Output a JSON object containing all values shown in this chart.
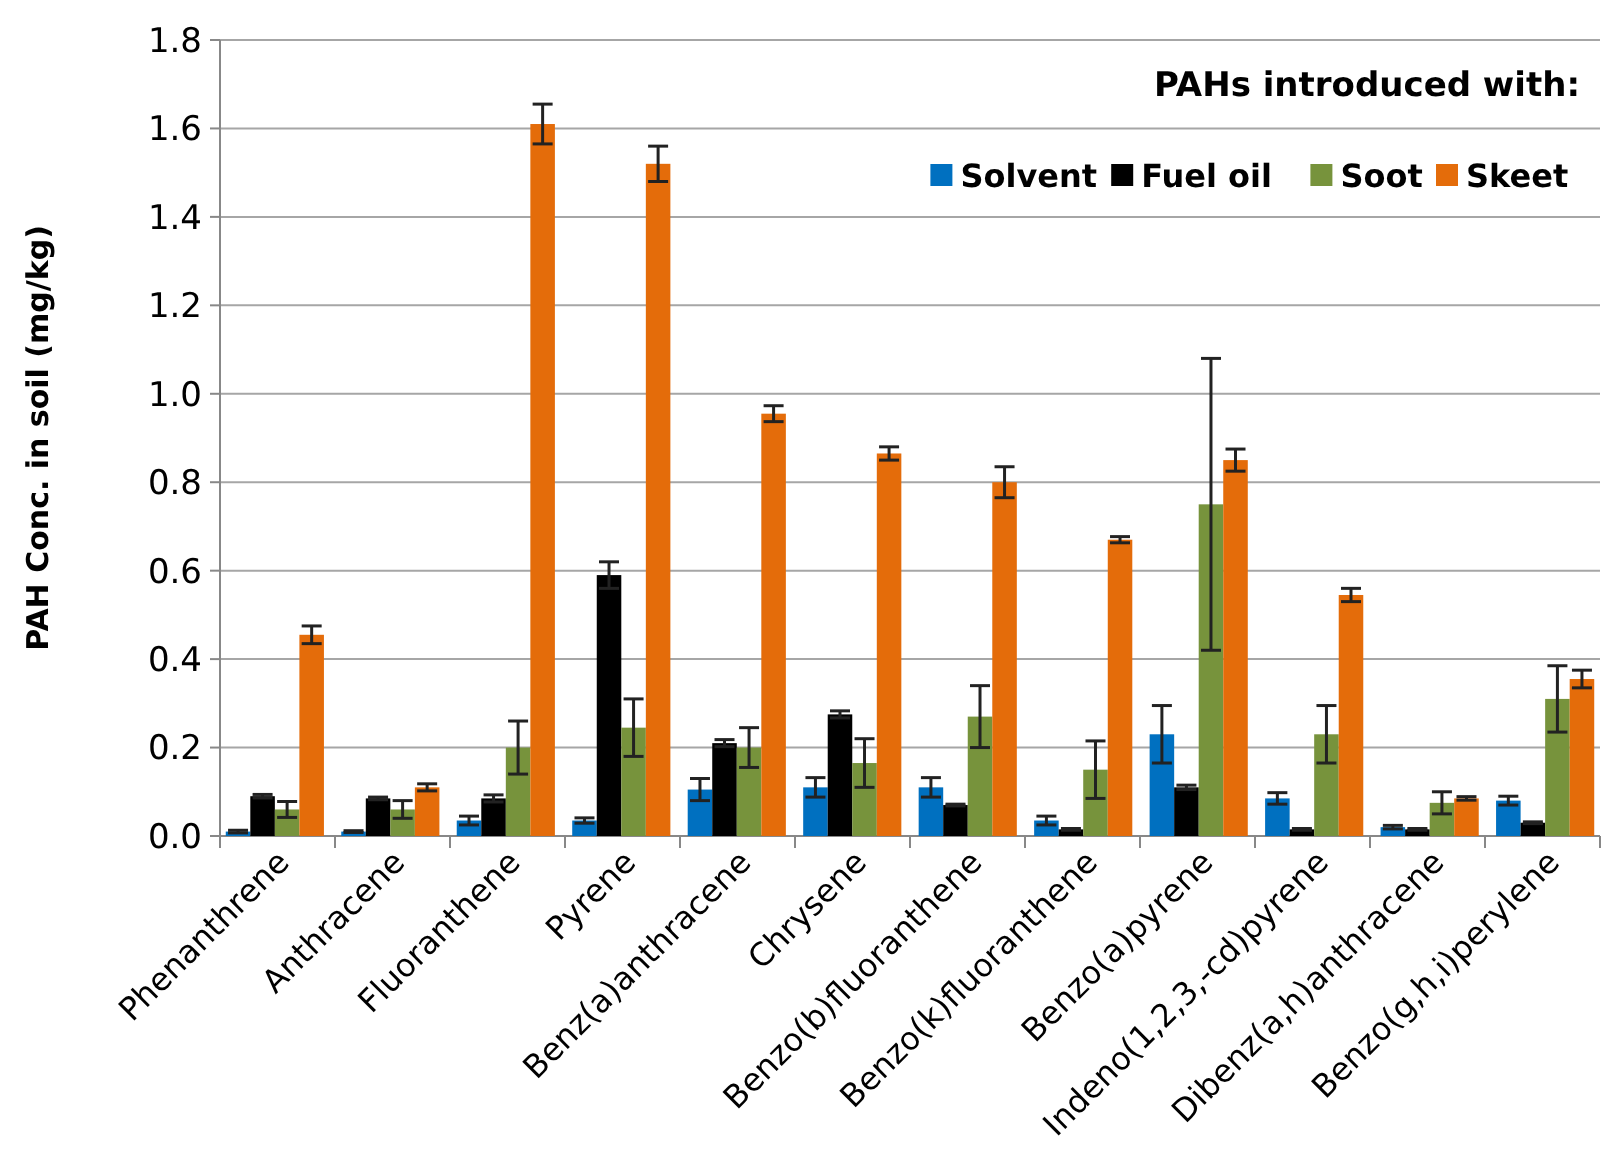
{
  "chart_data": {
    "type": "bar",
    "ylabel": "PAH  Conc. in soil (mg/kg)",
    "legend_title": "PAHs introduced with:",
    "legend": "top right",
    "grid": "y",
    "categories": [
      "Phenanthrene",
      "Anthracene",
      "Fluoranthene",
      "Pyrene",
      "Benz(a)anthracene",
      "Chrysene",
      "Benzo(b)fluoranthene",
      "Benzo(k)fluoranthene",
      "Benzo(a)pyrene",
      "Indeno(1,2,3,-cd)pyrene",
      "Dibenz(a,h)anthracene",
      "Benzo(g,h,i)perylene"
    ],
    "ylim": [
      0,
      1.8
    ],
    "yticks": [
      {
        "value": 0,
        "label": "0.0"
      },
      {
        "value": 0.2,
        "label": "0.2"
      },
      {
        "value": 0.4,
        "label": "0.4"
      },
      {
        "value": 0.6,
        "label": "0.6"
      },
      {
        "value": 0.8,
        "label": "0.8"
      },
      {
        "value": 1,
        "label": "1.0"
      },
      {
        "value": 1.2,
        "label": "1.2"
      },
      {
        "value": 1.4,
        "label": "1.4"
      },
      {
        "value": 1.6,
        "label": "1.6"
      },
      {
        "value": 1.8,
        "label": "1.8"
      }
    ],
    "series": [
      {
        "name": "Solvent",
        "color": "#0070c0",
        "values": [
          0.01,
          0.01,
          0.035,
          0.035,
          0.105,
          0.11,
          0.11,
          0.035,
          0.23,
          0.085,
          0.02,
          0.08
        ],
        "errors": [
          0.003,
          0.002,
          0.01,
          0.006,
          0.025,
          0.022,
          0.022,
          0.01,
          0.065,
          0.013,
          0.004,
          0.01
        ]
      },
      {
        "name": "Fuel oil",
        "color": "#000000",
        "values": [
          0.09,
          0.085,
          0.085,
          0.59,
          0.21,
          0.275,
          0.07,
          0.015,
          0.11,
          0.015,
          0.015,
          0.03
        ],
        "errors": [
          0.004,
          0.003,
          0.008,
          0.03,
          0.008,
          0.008,
          0.002,
          0.002,
          0.005,
          0.002,
          0.002,
          0.002
        ]
      },
      {
        "name": "Soot",
        "color": "#77933c",
        "values": [
          0.06,
          0.06,
          0.2,
          0.245,
          0.2,
          0.165,
          0.27,
          0.15,
          0.75,
          0.23,
          0.075,
          0.31
        ],
        "errors": [
          0.018,
          0.02,
          0.06,
          0.065,
          0.045,
          0.055,
          0.07,
          0.065,
          0.33,
          0.065,
          0.025,
          0.075
        ]
      },
      {
        "name": "Skeet",
        "color": "#e46c0a",
        "values": [
          0.455,
          0.11,
          1.61,
          1.52,
          0.955,
          0.865,
          0.8,
          0.67,
          0.85,
          0.545,
          0.085,
          0.355
        ],
        "errors": [
          0.02,
          0.008,
          0.045,
          0.04,
          0.018,
          0.015,
          0.035,
          0.007,
          0.025,
          0.015,
          0.004,
          0.02
        ]
      }
    ]
  }
}
